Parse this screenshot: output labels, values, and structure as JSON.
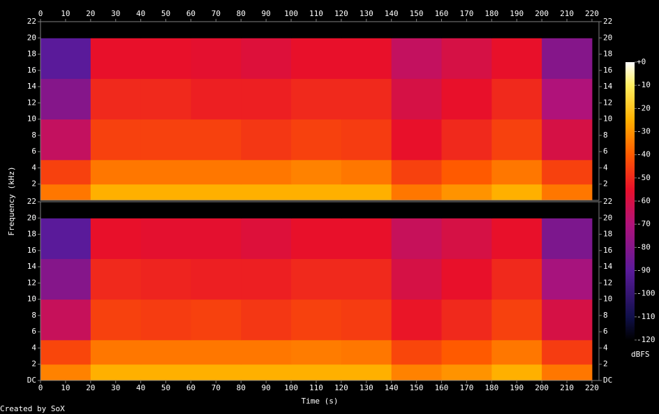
{
  "chart_data": {
    "type": "spectrogram",
    "ylabel": "Frequency (kHz)",
    "xlabel": "Time (s)",
    "footer": "Created by SoX",
    "xlim": [
      0,
      222.8
    ],
    "xticks": [
      0,
      10,
      20,
      30,
      40,
      50,
      60,
      70,
      80,
      90,
      100,
      110,
      120,
      130,
      140,
      150,
      160,
      170,
      180,
      190,
      200,
      210,
      220
    ],
    "time_bins": [
      0,
      20,
      40,
      60,
      80,
      100,
      120,
      140,
      160,
      180,
      200,
      220
    ],
    "freq_bins": [
      0,
      2,
      5,
      10,
      15,
      20,
      22
    ],
    "colorbar": {
      "label": "dBFS",
      "lim": [
        -120,
        0
      ],
      "ticks": [
        {
          "value": 0,
          "label": "+0"
        },
        -10,
        -20,
        -30,
        -40,
        -50,
        -60,
        -70,
        -80,
        -90,
        -100,
        -110,
        -120
      ],
      "colorscale": [
        [
          -120,
          "#000000"
        ],
        [
          -110,
          "#10104a"
        ],
        [
          -90,
          "#5a1a9a"
        ],
        [
          -70,
          "#b0127a"
        ],
        [
          -55,
          "#e8102a"
        ],
        [
          -40,
          "#ff5a00"
        ],
        [
          -25,
          "#ffb000"
        ],
        [
          -10,
          "#ffee60"
        ],
        [
          0,
          "#ffffff"
        ]
      ]
    },
    "channels": [
      {
        "ylim": [
          0,
          22
        ],
        "yticks": [
          2,
          4,
          6,
          8,
          10,
          12,
          14,
          16,
          18,
          20,
          22
        ],
        "z": [
          [
            -35,
            -25,
            -25,
            -25,
            -25,
            -25,
            -25,
            -35,
            -30,
            -25,
            -35
          ],
          [
            -45,
            -35,
            -35,
            -35,
            -35,
            -33,
            -35,
            -45,
            -40,
            -35,
            -45
          ],
          [
            -65,
            -45,
            -45,
            -45,
            -47,
            -45,
            -46,
            -55,
            -50,
            -45,
            -60
          ],
          [
            -80,
            -50,
            -50,
            -52,
            -52,
            -50,
            -50,
            -60,
            -55,
            -50,
            -70
          ],
          [
            -90,
            -55,
            -55,
            -56,
            -58,
            -55,
            -55,
            -65,
            -60,
            -55,
            -80
          ],
          [
            -120,
            -120,
            -120,
            -120,
            -120,
            -120,
            -120,
            -120,
            -120,
            -120,
            -120
          ]
        ]
      },
      {
        "ylim": [
          0,
          22
        ],
        "yticks": [
          {
            "value": 0,
            "label": "DC"
          },
          2,
          4,
          6,
          8,
          10,
          12,
          14,
          16,
          18,
          20,
          22
        ],
        "z": [
          [
            -33,
            -25,
            -25,
            -25,
            -25,
            -25,
            -25,
            -33,
            -30,
            -25,
            -35
          ],
          [
            -44,
            -35,
            -35,
            -35,
            -35,
            -34,
            -35,
            -44,
            -40,
            -35,
            -46
          ],
          [
            -64,
            -45,
            -46,
            -45,
            -47,
            -45,
            -46,
            -54,
            -50,
            -45,
            -60
          ],
          [
            -80,
            -50,
            -51,
            -52,
            -52,
            -50,
            -50,
            -60,
            -55,
            -50,
            -72
          ],
          [
            -90,
            -55,
            -56,
            -56,
            -58,
            -55,
            -55,
            -64,
            -60,
            -55,
            -82
          ],
          [
            -120,
            -120,
            -120,
            -120,
            -120,
            -120,
            -120,
            -120,
            -120,
            -120,
            -120
          ]
        ]
      }
    ]
  }
}
